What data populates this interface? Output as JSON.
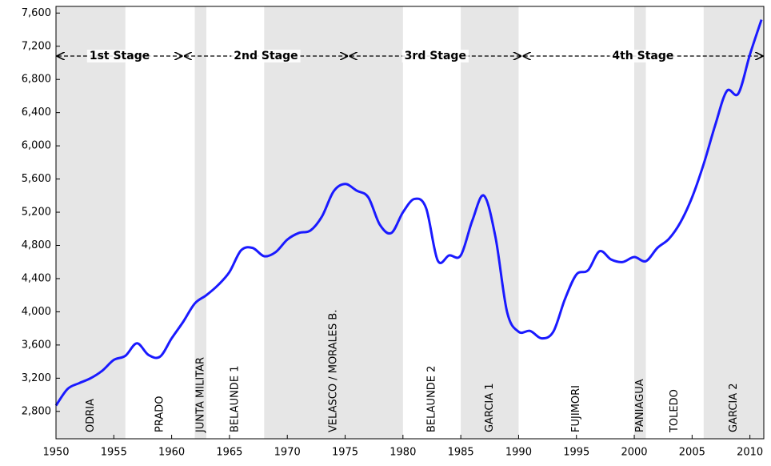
{
  "chart_data": {
    "type": "line",
    "x": [
      1950,
      1951,
      1952,
      1953,
      1954,
      1955,
      1956,
      1957,
      1958,
      1959,
      1960,
      1961,
      1962,
      1963,
      1964,
      1965,
      1966,
      1967,
      1968,
      1969,
      1970,
      1971,
      1972,
      1973,
      1974,
      1975,
      1976,
      1977,
      1978,
      1979,
      1980,
      1981,
      1982,
      1983,
      1984,
      1985,
      1986,
      1987,
      1988,
      1989,
      1990,
      1991,
      1992,
      1993,
      1994,
      1995,
      1996,
      1997,
      1998,
      1999,
      2000,
      2001,
      2002,
      2003,
      2004,
      2005,
      2006,
      2007,
      2008,
      2009,
      2010,
      2011
    ],
    "series": [
      {
        "color": "#1a1aff",
        "values": [
          2870,
          3070,
          3140,
          3200,
          3290,
          3420,
          3470,
          3620,
          3480,
          3460,
          3680,
          3880,
          4100,
          4200,
          4320,
          4480,
          4740,
          4770,
          4670,
          4720,
          4870,
          4950,
          4980,
          5150,
          5450,
          5540,
          5460,
          5380,
          5050,
          4950,
          5200,
          5360,
          5250,
          4620,
          4680,
          4680,
          5100,
          5400,
          4900,
          4000,
          3760,
          3770,
          3680,
          3760,
          4150,
          4450,
          4500,
          4730,
          4630,
          4600,
          4660,
          4610,
          4770,
          4880,
          5080,
          5380,
          5780,
          6250,
          6660,
          6630,
          7100,
          7520
        ]
      }
    ],
    "xlim": [
      1950,
      2011.2
    ],
    "xticks": [
      1950,
      1955,
      1960,
      1965,
      1970,
      1975,
      1980,
      1985,
      1990,
      1995,
      2000,
      2005,
      2010
    ],
    "ylim": [
      2470,
      7680
    ],
    "yticks": [
      {
        "value": 2800,
        "label": "2,800"
      },
      {
        "value": 3200,
        "label": "3,200"
      },
      {
        "value": 3600,
        "label": "3,600"
      },
      {
        "value": 4000,
        "label": "4,000"
      },
      {
        "value": 4400,
        "label": "4,400"
      },
      {
        "value": 4800,
        "label": "4,800"
      },
      {
        "value": 5200,
        "label": "5,200"
      },
      {
        "value": 5600,
        "label": "5,600"
      },
      {
        "value": 6000,
        "label": "6,000"
      },
      {
        "value": 6400,
        "label": "6,400"
      },
      {
        "value": 6800,
        "label": "6,800"
      },
      {
        "value": 7200,
        "label": "7,200"
      },
      {
        "value": 7600,
        "label": "7,600"
      }
    ],
    "periods": [
      {
        "name": "ODRIA",
        "start": 1950,
        "end": 1956,
        "shaded": true
      },
      {
        "name": "PRADO",
        "start": 1956,
        "end": 1962,
        "shaded": false
      },
      {
        "name": "JUNTA MILITAR",
        "start": 1962,
        "end": 1963,
        "shaded": true
      },
      {
        "name": "BELAUNDE 1",
        "start": 1963,
        "end": 1968,
        "shaded": false
      },
      {
        "name": "VELASCO / MORALES B.",
        "start": 1968,
        "end": 1980,
        "shaded": true
      },
      {
        "name": "BELAUNDE 2",
        "start": 1980,
        "end": 1985,
        "shaded": false
      },
      {
        "name": "GARCIA 1",
        "start": 1985,
        "end": 1990,
        "shaded": true
      },
      {
        "name": "FUJIMORI",
        "start": 1990,
        "end": 2000,
        "shaded": false
      },
      {
        "name": "PANIAGUA",
        "start": 2000,
        "end": 2001,
        "shaded": true
      },
      {
        "name": "TOLEDO",
        "start": 2001,
        "end": 2006,
        "shaded": false
      },
      {
        "name": "GARCIA 2",
        "start": 2006,
        "end": 2011.2,
        "shaded": true
      }
    ],
    "stages": [
      {
        "name": "1st Stage",
        "start": 1950,
        "end": 1961
      },
      {
        "name": "2nd Stage",
        "start": 1961,
        "end": 1975.3
      },
      {
        "name": "3rd Stage",
        "start": 1975.3,
        "end": 1990.3
      },
      {
        "name": "4th Stage",
        "start": 1990.3,
        "end": 2011.2
      }
    ]
  }
}
